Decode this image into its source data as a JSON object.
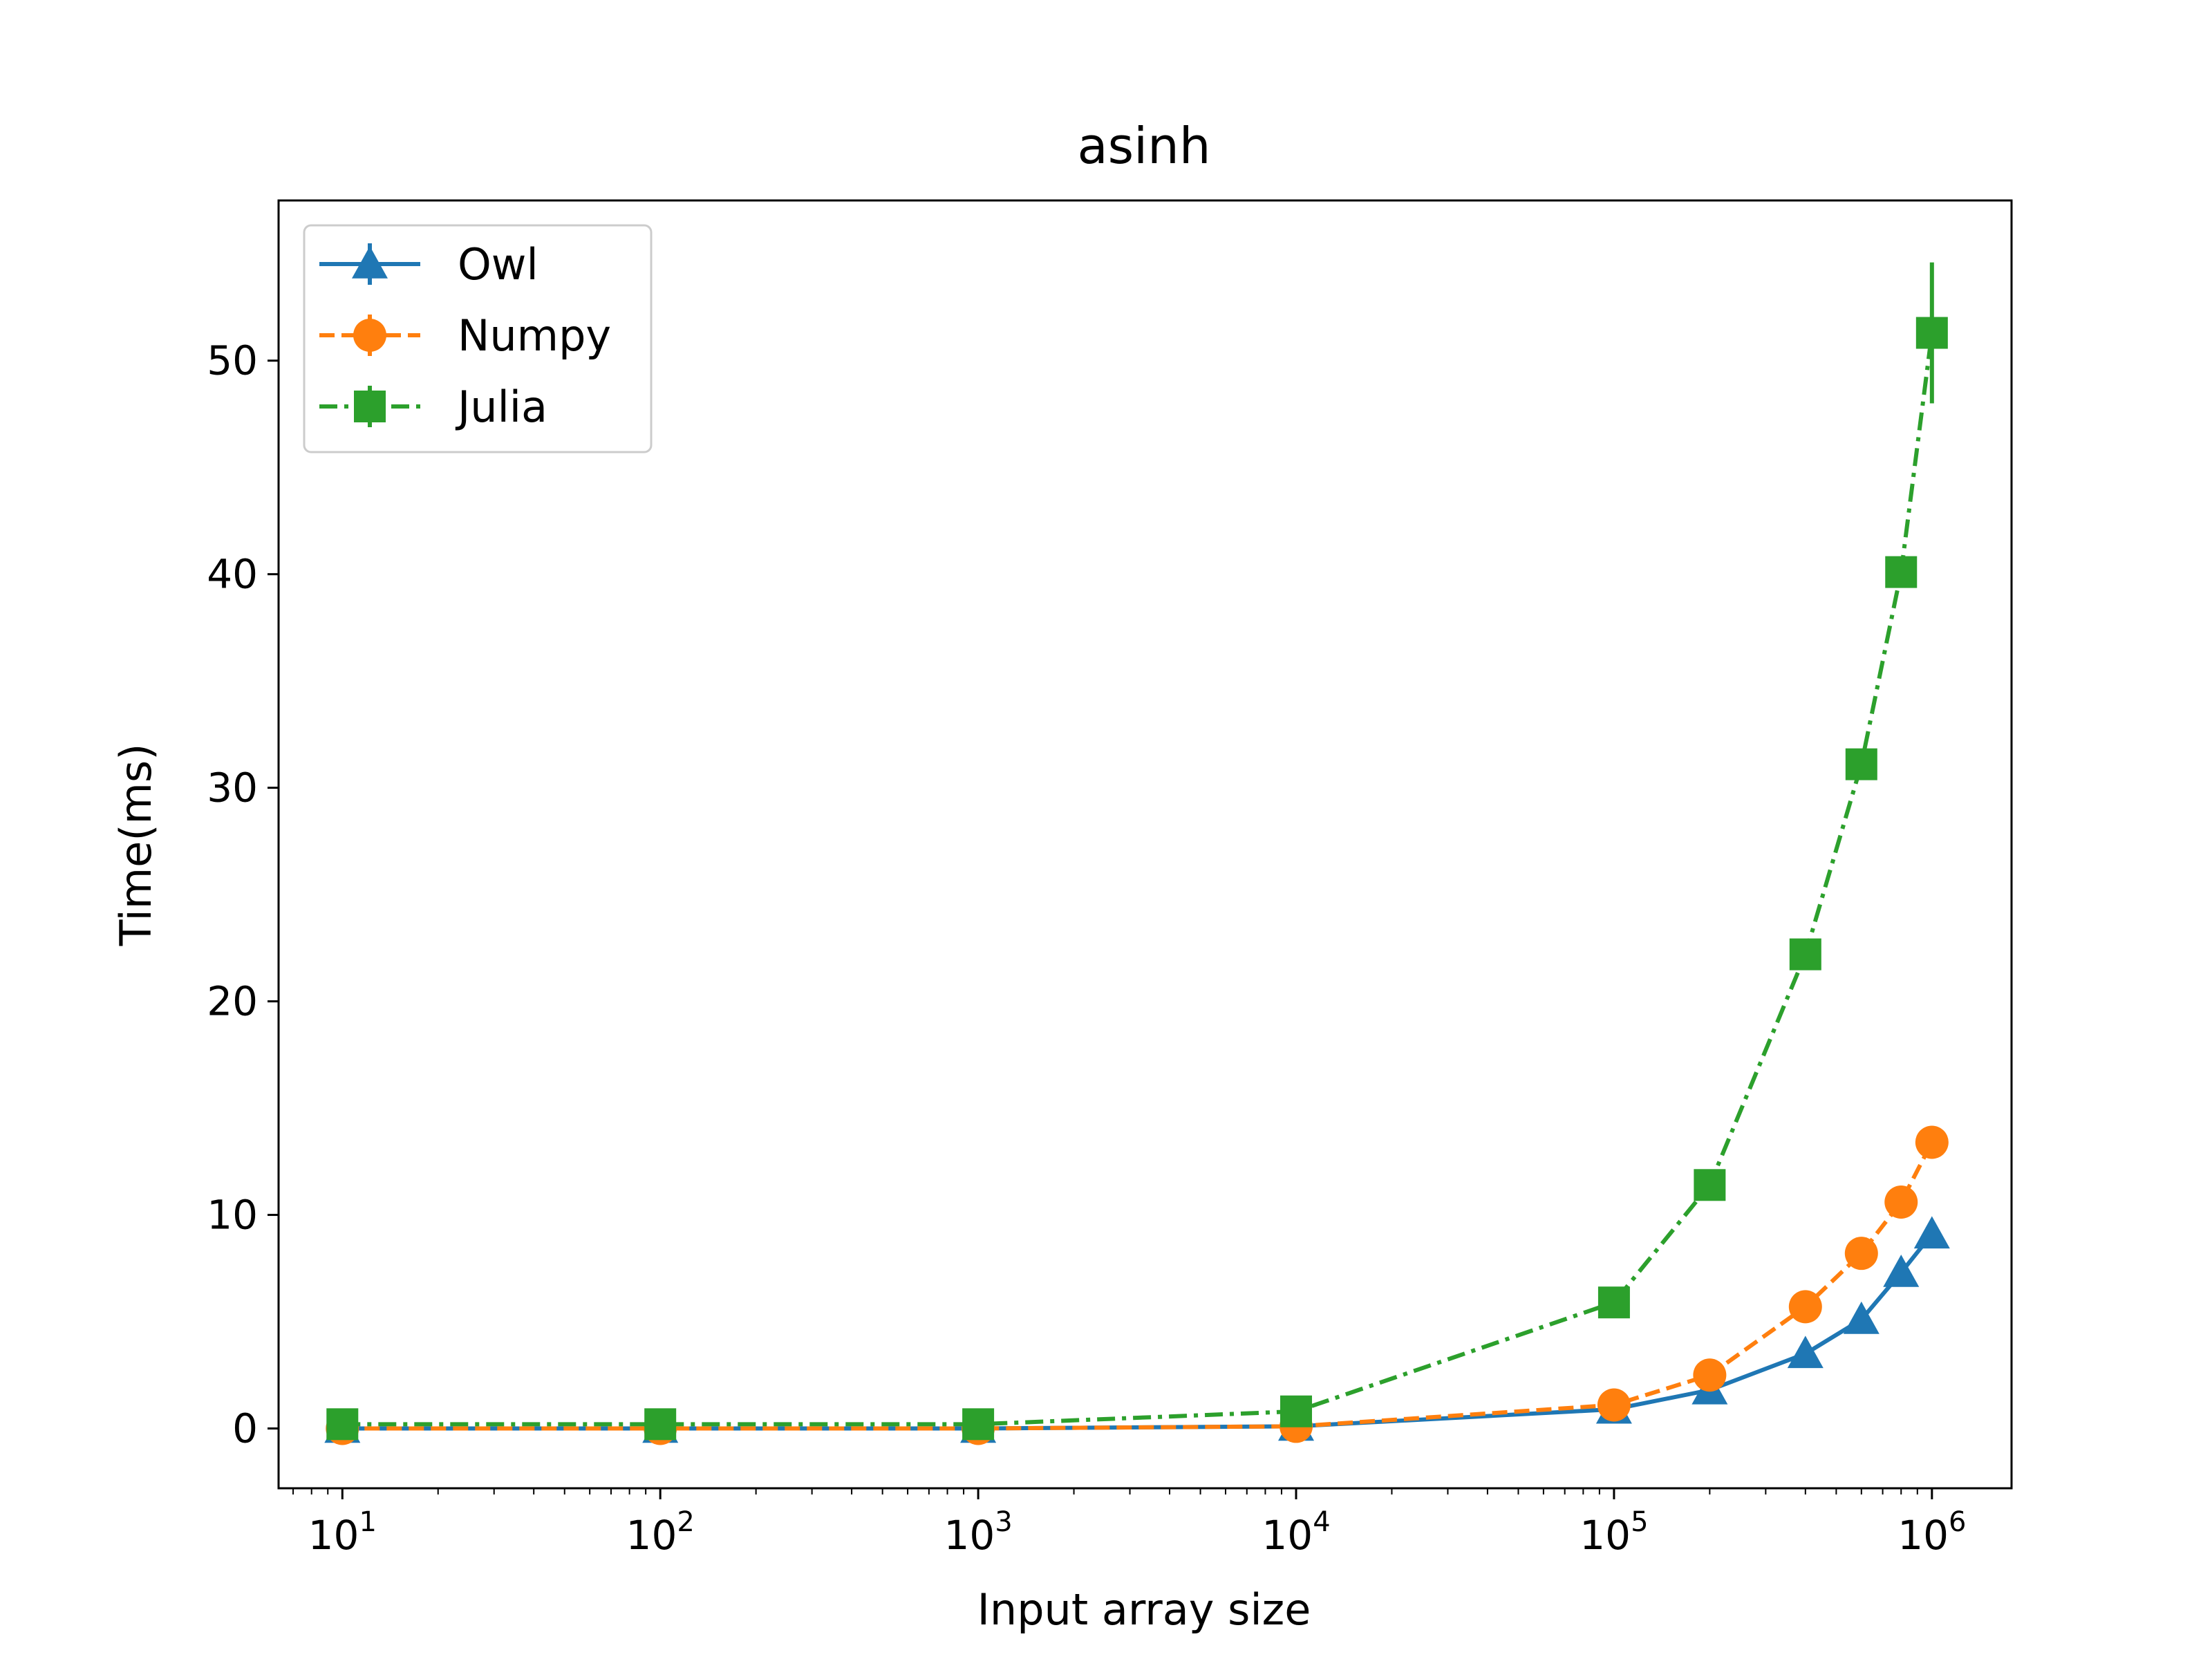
{
  "chart_data": {
    "type": "line",
    "title": "asinh",
    "xlabel": "Input array size",
    "ylabel": "Time(ms)",
    "xscale": "log",
    "xlim": [
      6.3,
      1780000
    ],
    "ylim": [
      -2.8,
      57.5
    ],
    "grid": false,
    "legend_position": "top-left",
    "x_ticks": [
      {
        "base": "10",
        "exp": "1"
      },
      {
        "base": "10",
        "exp": "2"
      },
      {
        "base": "10",
        "exp": "3"
      },
      {
        "base": "10",
        "exp": "4"
      },
      {
        "base": "10",
        "exp": "5"
      },
      {
        "base": "10",
        "exp": "6"
      }
    ],
    "y_ticks": [
      "0",
      "10",
      "20",
      "30",
      "40",
      "50"
    ],
    "x": [
      10,
      100,
      1000,
      10000,
      100000,
      200000,
      400000,
      600000,
      800000,
      1000000
    ],
    "series": [
      {
        "name": "Owl",
        "color": "#1f77b4",
        "linestyle": "solid",
        "marker": "triangle",
        "values": [
          0.0,
          0.0,
          0.0,
          0.1,
          0.9,
          1.8,
          3.5,
          5.1,
          7.3,
          9.1
        ],
        "errors": [
          0,
          0,
          0,
          0,
          0,
          0,
          0,
          0,
          0,
          0
        ]
      },
      {
        "name": "Numpy",
        "color": "#ff7f0e",
        "linestyle": "dashed",
        "marker": "circle",
        "values": [
          0.0,
          0.0,
          0.0,
          0.1,
          1.1,
          2.5,
          5.7,
          8.2,
          10.6,
          13.4
        ],
        "errors": [
          0,
          0,
          0,
          0,
          0,
          0,
          0,
          0,
          0,
          0
        ]
      },
      {
        "name": "Julia",
        "color": "#2ca02c",
        "linestyle": "dashdot",
        "marker": "square",
        "values": [
          0.2,
          0.2,
          0.2,
          0.8,
          5.9,
          11.4,
          22.2,
          31.1,
          40.1,
          51.3
        ],
        "errors": [
          0,
          0,
          0,
          0,
          0,
          0,
          0,
          0,
          0,
          3.3
        ]
      }
    ]
  }
}
